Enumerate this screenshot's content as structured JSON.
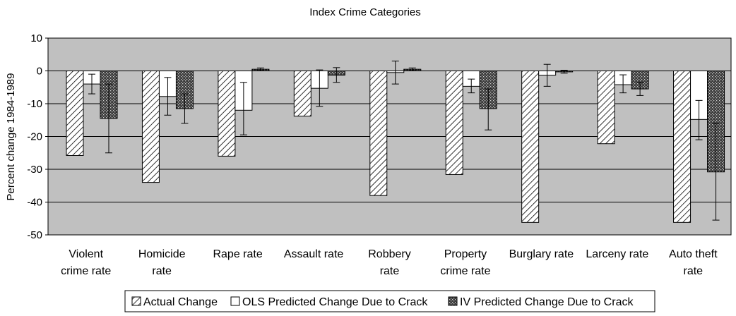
{
  "chart_data": {
    "type": "bar",
    "title": "Index Crime Categories",
    "xlabel": "",
    "ylabel": "Percent change 1984-1989",
    "ylim": [
      -50,
      10
    ],
    "yticks": [
      10,
      0,
      -10,
      -20,
      -30,
      -40,
      -50
    ],
    "grid": true,
    "legend_position": "bottom",
    "categories": [
      [
        "Violent",
        "crime rate"
      ],
      [
        "Homicide",
        "rate"
      ],
      [
        "Rape rate"
      ],
      [
        "Assault rate"
      ],
      [
        "Robbery",
        "rate"
      ],
      [
        "Property",
        "crime rate"
      ],
      [
        "Burglary rate"
      ],
      [
        "Larceny rate"
      ],
      [
        "Auto theft",
        "rate"
      ]
    ],
    "series": [
      {
        "name": "Actual Change",
        "pattern": "diagonal-hatch",
        "values": [
          -25.8,
          -34.0,
          -26.0,
          -13.8,
          -38.0,
          -31.6,
          -46.2,
          -22.2,
          -46.2
        ],
        "errors": null
      },
      {
        "name": "OLS Predicted Change Due to Crack",
        "pattern": "white",
        "values": [
          -4.0,
          -7.8,
          -12.0,
          -5.3,
          -0.5,
          -4.7,
          -1.3,
          -4.2,
          -14.8
        ],
        "errors": [
          [
            -7.0,
            -1.0
          ],
          [
            -13.5,
            -2.0
          ],
          [
            -19.5,
            -3.5
          ],
          [
            -10.8,
            0.3
          ],
          [
            -4.0,
            3.0
          ],
          [
            -6.7,
            -2.5
          ],
          [
            -4.7,
            2.0
          ],
          [
            -6.7,
            -1.2
          ],
          [
            -21.0,
            -9.0
          ]
        ]
      },
      {
        "name": "IV Predicted Change Due to Crack",
        "pattern": "crosshatch-dark",
        "values": [
          -14.5,
          -11.5,
          0.5,
          -1.3,
          0.5,
          -11.5,
          -0.3,
          -5.5,
          -30.8
        ],
        "errors": [
          [
            -25.0,
            -4.0
          ],
          [
            -16.0,
            -7.0
          ],
          [
            0.1,
            0.9
          ],
          [
            -3.5,
            1.0
          ],
          [
            0.1,
            0.9
          ],
          [
            -18.0,
            -5.5
          ],
          [
            -0.7,
            0.2
          ],
          [
            -7.5,
            -3.5
          ],
          [
            -45.5,
            -16.0
          ]
        ]
      }
    ],
    "colors": {
      "plot_background": "#c0c0c0",
      "gridline": "#000000",
      "bar_edge": "#000000"
    }
  }
}
